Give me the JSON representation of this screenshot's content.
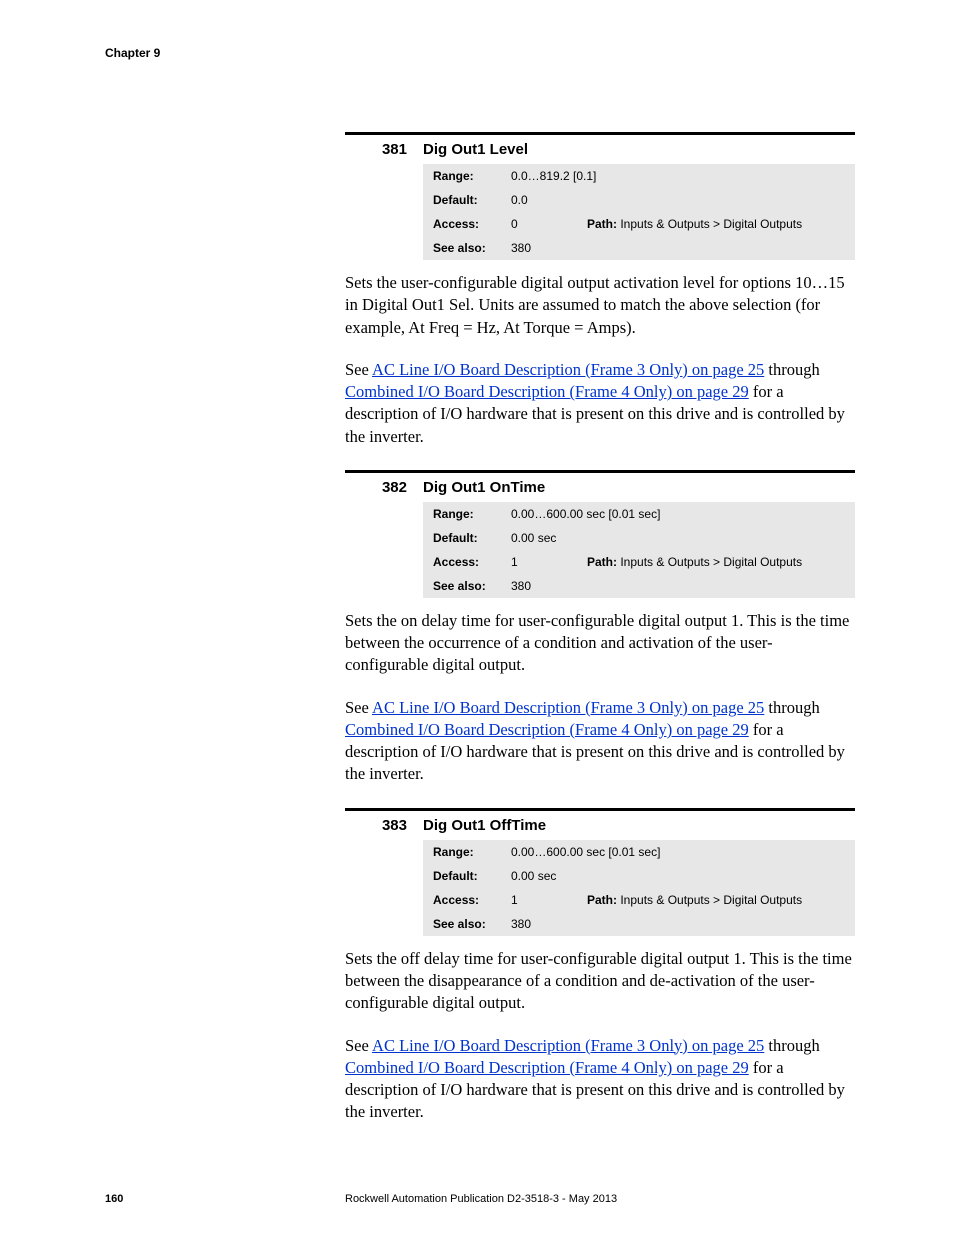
{
  "header": {
    "chapter": "Chapter 9"
  },
  "params": [
    {
      "num": "381",
      "title": "Dig Out1 Level",
      "range": "0.0…819.2   [0.1]",
      "default_": "0.0",
      "access": "0",
      "path_label": "Path:",
      "path": " Inputs & Outputs > Digital Outputs",
      "seealso": "380",
      "desc1": "Sets the user-configurable digital output activation level for options 10…15 in Digital Out1 Sel. Units are assumed to match the above selection (for example, At Freq = Hz, At Torque = Amps).",
      "see_pre": "See ",
      "link1": "AC Line I/O Board Description (Frame 3 Only) on page 25",
      "see_mid": " through ",
      "link2": "Combined I/O Board Description (Frame 4 Only) on page 29",
      "see_post": " for a description of I/O hardware that is present on this drive and is controlled by the inverter."
    },
    {
      "num": "382",
      "title": "Dig Out1 OnTime",
      "range": "0.00…600.00 sec [0.01 sec]",
      "default_": "0.00 sec",
      "access": "1",
      "path_label": "Path:",
      "path": " Inputs & Outputs > Digital Outputs",
      "seealso": "380",
      "desc1": "Sets the on delay time for user-configurable digital output 1. This is the time between the occurrence of a condition and activation of the user-configurable digital output.",
      "see_pre": "See ",
      "link1": "AC Line I/O Board Description (Frame 3 Only) on page 25",
      "see_mid": " through ",
      "link2": "Combined I/O Board Description (Frame 4 Only) on page 29",
      "see_post": " for a description of I/O hardware that is present on this drive and is controlled by the inverter."
    },
    {
      "num": "383",
      "title": "Dig Out1 OffTime",
      "range": "0.00…600.00 sec [0.01 sec]",
      "default_": "0.00 sec",
      "access": "1",
      "path_label": "Path:",
      "path": " Inputs & Outputs > Digital Outputs",
      "seealso": "380",
      "desc1": "Sets the off delay time for user-configurable digital output 1. This is the time between the disappearance of a condition and de-activation of the user-configurable digital output.",
      "see_pre": "See ",
      "link1": "AC Line I/O Board Description (Frame 3 Only) on page 25",
      "see_mid": " through ",
      "link2": "Combined I/O Board Description (Frame 4 Only) on page 29",
      "see_post": " for a description of I/O hardware that is present on this drive and is controlled by the inverter."
    }
  ],
  "labels": {
    "range": "Range:",
    "default_": "Default:",
    "access": "Access:",
    "seealso": "See also:"
  },
  "footer": {
    "page": "160",
    "pub": "Rockwell Automation Publication D2-3518-3 - May 2013"
  }
}
